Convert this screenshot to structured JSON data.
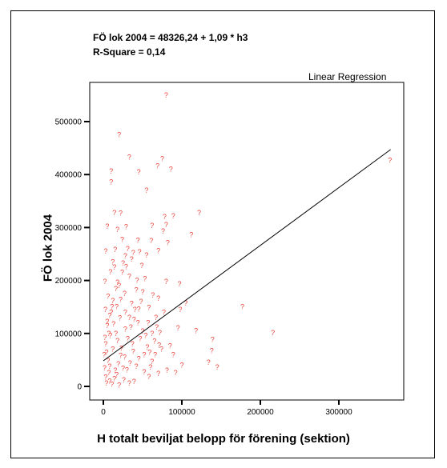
{
  "chart_data": {
    "type": "scatter",
    "title": "",
    "equation": "FÖ lok 2004 = 48326,24 + 1,09 * h3",
    "r_square": "R-Square = 0,14",
    "legend": "Linear Regression",
    "xlabel": "H totalt beviljat belopp för förening (sektion)",
    "ylabel": "FÖ lok 2004",
    "xlim": [
      -8000,
      380000
    ],
    "ylim": [
      -5000,
      560000
    ],
    "x_ticks": [
      0,
      100000,
      200000,
      300000
    ],
    "y_ticks": [
      0,
      100000,
      200000,
      300000,
      400000,
      500000
    ],
    "x_tick_labels": [
      "0",
      "100000",
      "200000",
      "300000"
    ],
    "y_tick_labels": [
      "0",
      "100000",
      "200000",
      "300000",
      "400000",
      "500000"
    ],
    "marker": "?",
    "marker_color": "#e8473f",
    "line_color": "#000000",
    "regression": {
      "intercept": 48326.24,
      "slope": 1.09,
      "x_range": [
        0,
        366000
      ]
    },
    "points": [
      [
        80000,
        550000
      ],
      [
        365000,
        427000
      ],
      [
        20000,
        475000
      ],
      [
        33000,
        433000
      ],
      [
        10000,
        406000
      ],
      [
        45000,
        405000
      ],
      [
        69000,
        416000
      ],
      [
        75000,
        430000
      ],
      [
        86000,
        410000
      ],
      [
        10000,
        386000
      ],
      [
        55000,
        370000
      ],
      [
        14000,
        328000
      ],
      [
        22000,
        327000
      ],
      [
        78000,
        320000
      ],
      [
        89000,
        322000
      ],
      [
        80000,
        305000
      ],
      [
        122000,
        328000
      ],
      [
        5000,
        302000
      ],
      [
        18000,
        296000
      ],
      [
        29000,
        301000
      ],
      [
        62000,
        304000
      ],
      [
        76000,
        293000
      ],
      [
        112000,
        286000
      ],
      [
        24000,
        277000
      ],
      [
        44000,
        276000
      ],
      [
        82000,
        271000
      ],
      [
        61000,
        275000
      ],
      [
        3000,
        255000
      ],
      [
        15000,
        258000
      ],
      [
        28000,
        246000
      ],
      [
        38000,
        252000
      ],
      [
        55000,
        248000
      ],
      [
        70000,
        256000
      ],
      [
        12000,
        235000
      ],
      [
        25000,
        233000
      ],
      [
        49000,
        228000
      ],
      [
        9000,
        216000
      ],
      [
        33000,
        208000
      ],
      [
        53000,
        203000
      ],
      [
        80000,
        198000
      ],
      [
        97000,
        193000
      ],
      [
        16000,
        184000
      ],
      [
        27000,
        175000
      ],
      [
        42000,
        182000
      ],
      [
        63000,
        172000
      ],
      [
        70000,
        166000
      ],
      [
        12000,
        162000
      ],
      [
        36000,
        156000
      ],
      [
        58000,
        149000
      ],
      [
        77000,
        140000
      ],
      [
        105000,
        157000
      ],
      [
        98000,
        145000
      ],
      [
        177000,
        150000
      ],
      [
        8000,
        134000
      ],
      [
        21000,
        129000
      ],
      [
        44000,
        120000
      ],
      [
        67000,
        130000
      ],
      [
        5000,
        115000
      ],
      [
        28000,
        108000
      ],
      [
        50000,
        104000
      ],
      [
        72000,
        101000
      ],
      [
        95000,
        110000
      ],
      [
        118000,
        105000
      ],
      [
        139000,
        88000
      ],
      [
        138000,
        67000
      ],
      [
        216000,
        101000
      ],
      [
        2000,
        92000
      ],
      [
        18000,
        86000
      ],
      [
        37000,
        80000
      ],
      [
        56000,
        74000
      ],
      [
        85000,
        76000
      ],
      [
        4000,
        64000
      ],
      [
        22000,
        58000
      ],
      [
        45000,
        52000
      ],
      [
        62000,
        47000
      ],
      [
        89000,
        60000
      ],
      [
        134000,
        45000
      ],
      [
        145000,
        36000
      ],
      [
        8000,
        38000
      ],
      [
        30000,
        31000
      ],
      [
        52000,
        27000
      ],
      [
        70000,
        24000
      ],
      [
        92000,
        26000
      ],
      [
        3000,
        17000
      ],
      [
        14000,
        14000
      ],
      [
        26000,
        12000
      ],
      [
        39000,
        9000
      ],
      [
        58000,
        18000
      ],
      [
        11000,
        4000
      ],
      [
        20000,
        2000
      ],
      [
        33000,
        6000
      ],
      [
        6000,
        48000
      ],
      [
        12000,
        70000
      ],
      [
        16000,
        100000
      ],
      [
        10000,
        140000
      ],
      [
        20000,
        190000
      ],
      [
        24000,
        215000
      ],
      [
        31000,
        260000
      ],
      [
        40000,
        145000
      ],
      [
        47000,
        90000
      ],
      [
        52000,
        60000
      ],
      [
        57000,
        120000
      ],
      [
        65000,
        85000
      ],
      [
        60000,
        36000
      ],
      [
        38000,
        66000
      ],
      [
        42000,
        38000
      ],
      [
        27000,
        55000
      ],
      [
        7000,
        26000
      ],
      [
        15000,
        30000
      ],
      [
        19000,
        42000
      ],
      [
        23000,
        72000
      ],
      [
        3000,
        80000
      ],
      [
        9000,
        96000
      ],
      [
        13000,
        118000
      ],
      [
        17000,
        150000
      ],
      [
        6000,
        170000
      ],
      [
        2000,
        198000
      ],
      [
        31000,
        90000
      ],
      [
        35000,
        112000
      ],
      [
        48000,
        160000
      ],
      [
        43000,
        200000
      ],
      [
        29000,
        226000
      ],
      [
        66000,
        60000
      ],
      [
        74000,
        70000
      ],
      [
        81000,
        30000
      ],
      [
        100000,
        40000
      ],
      [
        62000,
        100000
      ],
      [
        4000,
        6000
      ],
      [
        8000,
        10000
      ],
      [
        17000,
        22000
      ],
      [
        25000,
        34000
      ],
      [
        34000,
        44000
      ],
      [
        5000,
        122000
      ],
      [
        11000,
        150000
      ],
      [
        22000,
        164000
      ],
      [
        28000,
        140000
      ],
      [
        33000,
        130000
      ],
      [
        39000,
        126000
      ],
      [
        45000,
        146000
      ],
      [
        50000,
        178000
      ],
      [
        54000,
        96000
      ],
      [
        59000,
        64000
      ],
      [
        68000,
        112000
      ],
      [
        71000,
        78000
      ],
      [
        18000,
        196000
      ],
      [
        14000,
        225000
      ],
      [
        36000,
        240000
      ],
      [
        46000,
        254000
      ],
      [
        1000,
        60000
      ],
      [
        1500,
        35000
      ],
      [
        2500,
        145000
      ],
      [
        7000,
        100000
      ]
    ]
  }
}
